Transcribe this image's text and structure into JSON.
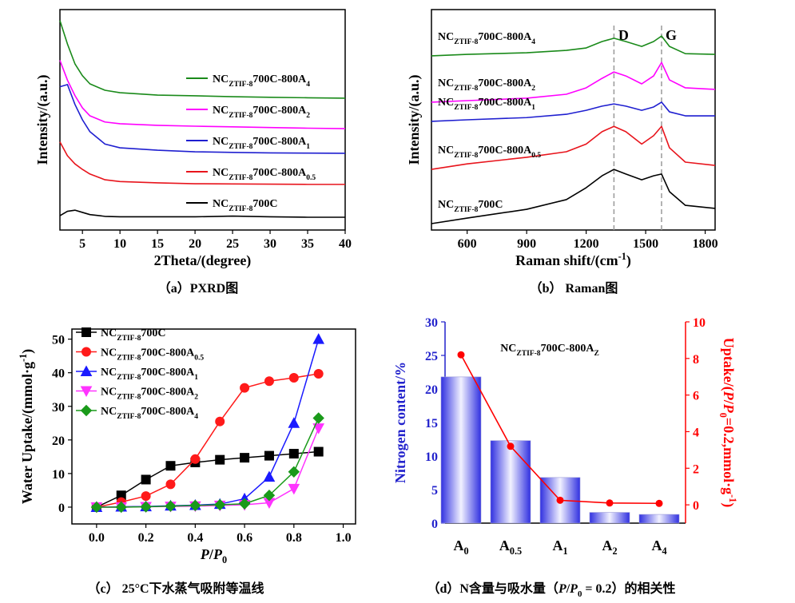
{
  "chart_data": [
    {
      "type": "line",
      "caption": "（a）PXRD图",
      "x_label": "2Theta/(degree)",
      "y_label": "Intensity/(a.u.)",
      "xlim": [
        2,
        40
      ],
      "xticks": [
        5,
        10,
        15,
        20,
        25,
        30,
        35,
        40
      ],
      "ylim": [
        0,
        100
      ],
      "legend": "right",
      "x": [
        2,
        3,
        4,
        5,
        6,
        8,
        10,
        15,
        20,
        25,
        30,
        35,
        40
      ],
      "series": [
        {
          "name": [
            {
              "text": "NC"
            },
            {
              "text": "ZTIF-8",
              "sub": true
            },
            {
              "text": "700C-800A"
            },
            {
              "text": "4",
              "sub": true
            }
          ],
          "color": "#1a8a1a",
          "values": [
            95,
            84.4,
            75.4,
            70,
            66.3,
            63.4,
            62.3,
            61.2,
            60.9,
            60.5,
            60.2,
            60,
            59.8
          ]
        },
        {
          "name": [
            {
              "text": "NC"
            },
            {
              "text": "ZTIF-8",
              "sub": true
            },
            {
              "text": "700C-800A"
            },
            {
              "text": "2",
              "sub": true
            }
          ],
          "color": "#ff00ff",
          "values": [
            77,
            68,
            61,
            55.4,
            51.8,
            49,
            48.2,
            47.5,
            47.1,
            46.8,
            46.5,
            46.2,
            46
          ]
        },
        {
          "name": [
            {
              "text": "NC"
            },
            {
              "text": "ZTIF-8",
              "sub": true
            },
            {
              "text": "700C-800A"
            },
            {
              "text": "1",
              "sub": true
            }
          ],
          "color": "#1f1fd0",
          "values": [
            65,
            66,
            57,
            50,
            44.6,
            39,
            37.3,
            36.2,
            35.5,
            35.2,
            35,
            34.9,
            34.8
          ]
        },
        {
          "name": [
            {
              "text": "NC"
            },
            {
              "text": "ZTIF-8",
              "sub": true
            },
            {
              "text": "700C-800A"
            },
            {
              "text": "0.5",
              "sub": true
            }
          ],
          "color": "#e8141c",
          "values": [
            40,
            33.7,
            30,
            27.5,
            25.4,
            22.8,
            22,
            21.4,
            21,
            20.9,
            20.8,
            20.7,
            20.7
          ]
        },
        {
          "name": [
            {
              "text": "NC"
            },
            {
              "text": "ZTIF-8",
              "sub": true
            },
            {
              "text": "700C"
            }
          ],
          "color": "#000000",
          "values": [
            6.5,
            8.5,
            9,
            8,
            7,
            6.2,
            6,
            6,
            6,
            6.3,
            6,
            5.8,
            5.8
          ]
        }
      ]
    },
    {
      "type": "line",
      "caption": "（b） Raman图",
      "x_label": [
        {
          "text": "Raman shift/(cm"
        },
        {
          "text": "-1",
          "sup": true
        },
        {
          "text": ")"
        }
      ],
      "y_label": "Intensity/(a.u.)",
      "xlim": [
        420,
        1850
      ],
      "xticks": [
        600,
        900,
        1200,
        1500,
        1800
      ],
      "ylim": [
        0,
        100
      ],
      "annotations": [
        {
          "x": 1340,
          "text": "D"
        },
        {
          "x": 1580,
          "text": "G"
        }
      ],
      "x": [
        420,
        600,
        900,
        1100,
        1200,
        1280,
        1340,
        1400,
        1480,
        1540,
        1580,
        1620,
        1700,
        1850
      ],
      "series": [
        {
          "name": [
            {
              "text": "NC"
            },
            {
              "text": "ZTIF-8",
              "sub": true
            },
            {
              "text": "700C-800A"
            },
            {
              "text": "4",
              "sub": true
            }
          ],
          "color": "#1a8a1a",
          "values": [
            79,
            79.7,
            80.4,
            81.5,
            82.6,
            85.5,
            87,
            85.5,
            83.3,
            85.5,
            88,
            83.3,
            80,
            79.7
          ]
        },
        {
          "name": [
            {
              "text": "NC"
            },
            {
              "text": "ZTIF-8",
              "sub": true
            },
            {
              "text": "700C-800A"
            },
            {
              "text": "2",
              "sub": true
            }
          ],
          "color": "#ff00ff",
          "values": [
            58,
            58.7,
            59.8,
            61.6,
            64.5,
            68.8,
            71.7,
            69.9,
            66.3,
            69.9,
            76,
            68.1,
            64.5,
            63.8
          ]
        },
        {
          "name": [
            {
              "text": "NC"
            },
            {
              "text": "ZTIF-8",
              "sub": true
            },
            {
              "text": "700C-800A"
            },
            {
              "text": "1",
              "sub": true
            }
          ],
          "color": "#1f1fd0",
          "values": [
            49.3,
            50,
            51,
            52.5,
            54.3,
            56.2,
            57.2,
            56.2,
            54.3,
            55.8,
            58,
            53.6,
            51.8,
            51.8
          ]
        },
        {
          "name": [
            {
              "text": "NC"
            },
            {
              "text": "ZTIF-8",
              "sub": true
            },
            {
              "text": "700C-800A"
            },
            {
              "text": "0.5",
              "sub": true
            }
          ],
          "color": "#e8141c",
          "values": [
            27.5,
            30,
            33,
            35.5,
            39,
            44.6,
            47,
            44.6,
            39,
            42.8,
            47,
            37.3,
            30.8,
            29.3
          ]
        },
        {
          "name": [
            {
              "text": "NC"
            },
            {
              "text": "ZTIF-8",
              "sub": true
            },
            {
              "text": "700C"
            }
          ],
          "color": "#000000",
          "values": [
            2.9,
            5.4,
            9.4,
            13.8,
            19.2,
            24.6,
            27.5,
            25.4,
            22.8,
            24.6,
            25.4,
            17.4,
            11.2,
            9.8
          ]
        }
      ]
    },
    {
      "type": "line",
      "caption": "（c） 25°C下水蒸气吸附等温线",
      "x_label": [
        {
          "text": "P",
          "i": true
        },
        {
          "text": "/"
        },
        {
          "text": "P",
          "i": true
        },
        {
          "text": "0",
          "sub": true
        }
      ],
      "y_label": [
        {
          "text": "Water Uptake/(mmol·g"
        },
        {
          "text": "-1",
          "sup": true
        },
        {
          "text": ")"
        }
      ],
      "xlim": [
        -0.1,
        1.05
      ],
      "xticks": [
        {
          "value": 0,
          "label": "0.0"
        },
        0.2,
        0.4,
        0.6,
        0.8,
        {
          "value": 1,
          "label": "1.0"
        }
      ],
      "ylim": [
        -5,
        53
      ],
      "yticks": [
        0,
        10,
        20,
        30,
        40,
        50
      ],
      "legend": "upper left",
      "x": [
        0,
        0.1,
        0.2,
        0.3,
        0.4,
        0.5,
        0.6,
        0.7,
        0.8,
        0.9
      ],
      "series": [
        {
          "name": [
            {
              "text": "NC"
            },
            {
              "text": "ZTIF-8",
              "sub": true
            },
            {
              "text": "700C"
            }
          ],
          "color": "#000000",
          "marker": "square",
          "values": [
            0,
            3.5,
            8.2,
            12.3,
            13.3,
            14.1,
            14.7,
            15.3,
            15.9,
            16.5
          ]
        },
        {
          "name": [
            {
              "text": "NC"
            },
            {
              "text": "ZTIF-8",
              "sub": true
            },
            {
              "text": "700C-800A"
            },
            {
              "text": "0.5",
              "sub": true
            }
          ],
          "color": "#ff1a1a",
          "marker": "circle",
          "values": [
            0,
            1.5,
            3.3,
            6.8,
            14.3,
            25.5,
            35.5,
            37.5,
            38.5,
            39.7
          ]
        },
        {
          "name": [
            {
              "text": "NC"
            },
            {
              "text": "ZTIF-8",
              "sub": true
            },
            {
              "text": "700C-800A"
            },
            {
              "text": "1",
              "sub": true
            }
          ],
          "color": "#1a1aff",
          "marker": "triangle-up",
          "values": [
            0,
            0.1,
            0.2,
            0.4,
            0.6,
            0.9,
            2.5,
            9,
            25,
            50
          ]
        },
        {
          "name": [
            {
              "text": "NC"
            },
            {
              "text": "ZTIF-8",
              "sub": true
            },
            {
              "text": "700C-800A"
            },
            {
              "text": "2",
              "sub": true
            }
          ],
          "color": "#ff33ff",
          "marker": "triangle-down",
          "values": [
            0,
            0,
            0.1,
            0.2,
            0.3,
            0.5,
            0.7,
            1.3,
            5.5,
            23.5
          ]
        },
        {
          "name": [
            {
              "text": "NC"
            },
            {
              "text": "ZTIF-8",
              "sub": true
            },
            {
              "text": "700C-800A"
            },
            {
              "text": "4",
              "sub": true
            }
          ],
          "color": "#1a9a1a",
          "marker": "diamond",
          "values": [
            0,
            0,
            0.1,
            0.3,
            0.5,
            0.7,
            1,
            3.5,
            10.5,
            26.5
          ]
        }
      ]
    },
    {
      "type": "bar",
      "caption": [
        {
          "text": "（d）N含量与吸水量（"
        },
        {
          "text": "P",
          "i": true
        },
        {
          "text": "/"
        },
        {
          "text": "P",
          "i": true
        },
        {
          "text": "0",
          "sub": true
        },
        {
          "text": " = 0.2）的相关性"
        }
      ],
      "y_label": "Nitrogen content/%",
      "y_color": "#2222cc",
      "y2_label": [
        {
          "text": "Uptake/("
        },
        {
          "text": "P",
          "i": true
        },
        {
          "text": "/"
        },
        {
          "text": "P",
          "i": true
        },
        {
          "text": "0",
          "sub": true
        },
        {
          "text": "=0.2,mmol·g"
        },
        {
          "text": "-1",
          "sup": true
        },
        {
          "text": ")"
        }
      ],
      "y2_color": "#ff0000",
      "annotation": [
        {
          "text": "NC"
        },
        {
          "text": "ZTIF-8",
          "sub": true
        },
        {
          "text": "700C-800A"
        },
        {
          "text": "Z",
          "sub": true
        }
      ],
      "categories": [
        [
          {
            "text": "A"
          },
          {
            "text": "0",
            "sub": true
          }
        ],
        [
          {
            "text": "A"
          },
          {
            "text": "0.5",
            "sub": true
          }
        ],
        [
          {
            "text": "A"
          },
          {
            "text": "1",
            "sub": true
          }
        ],
        [
          {
            "text": "A"
          },
          {
            "text": "2",
            "sub": true
          }
        ],
        [
          {
            "text": "A"
          },
          {
            "text": "4",
            "sub": true
          }
        ]
      ],
      "ylim": [
        0,
        30
      ],
      "yticks": [
        0,
        5,
        10,
        15,
        20,
        25,
        30
      ],
      "y2lim": [
        -1,
        10
      ],
      "y2ticks": [
        0,
        2,
        4,
        6,
        8,
        10
      ],
      "series": [
        {
          "color": "#3030e0",
          "values": [
            21.8,
            12.3,
            6.8,
            1.6,
            1.3
          ]
        },
        {
          "type": "line",
          "axis": "y2",
          "color": "#ff0000",
          "values": [
            8.2,
            3.2,
            0.25,
            0.1,
            0.08
          ]
        }
      ]
    }
  ]
}
